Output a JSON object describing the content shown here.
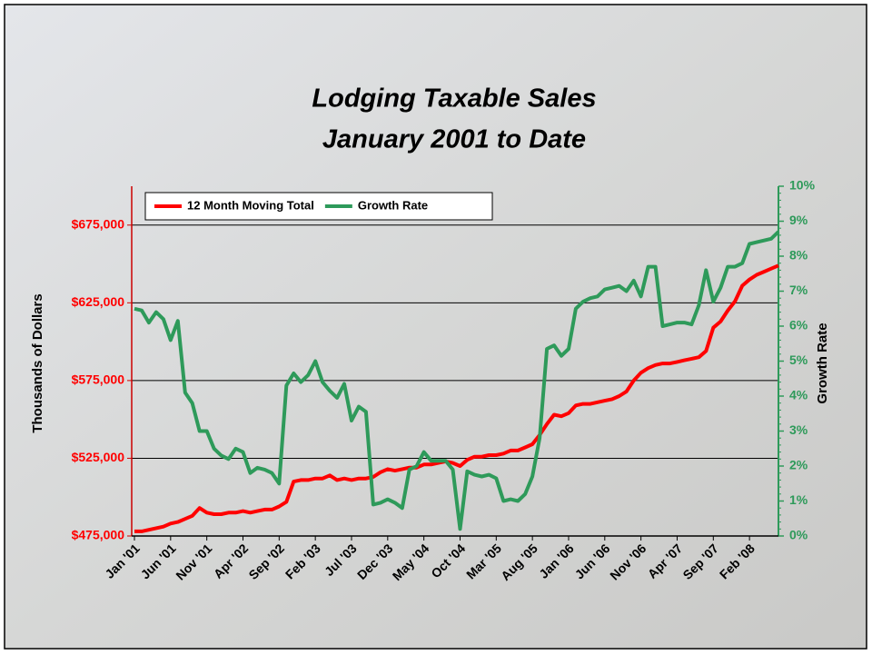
{
  "chart_data": {
    "type": "line",
    "title": "Lodging Taxable Sales",
    "subtitle": "January 2001 to Date",
    "ylabel": "Thousands of Dollars",
    "y2label": "Growth Rate",
    "categories": [
      "Jan '01",
      null,
      null,
      null,
      null,
      "Jun '01",
      null,
      null,
      null,
      null,
      "Nov '01",
      null,
      null,
      null,
      null,
      "Apr '02",
      null,
      null,
      null,
      null,
      "Sep '02",
      null,
      null,
      null,
      null,
      "Feb '03",
      null,
      null,
      null,
      null,
      "Jul '03",
      null,
      null,
      null,
      null,
      "Dec '03",
      null,
      null,
      null,
      null,
      "May '04",
      null,
      null,
      null,
      null,
      "Oct '04",
      null,
      null,
      null,
      null,
      "Mar '05",
      null,
      null,
      null,
      null,
      "Aug '05",
      null,
      null,
      null,
      null,
      "Jan '06",
      null,
      null,
      null,
      null,
      "Jun '06",
      null,
      null,
      null,
      null,
      "Nov '06",
      null,
      null,
      null,
      null,
      "Apr '07",
      null,
      null,
      null,
      null,
      "Sep '07",
      null,
      null,
      null,
      null,
      "Feb '08",
      null,
      null,
      null,
      null
    ],
    "series": [
      {
        "name": "12 Month Moving Total",
        "color": "#ff0000",
        "axis": "y",
        "values": [
          478000,
          478000,
          479000,
          480000,
          481000,
          483000,
          484000,
          486000,
          488000,
          493000,
          490000,
          489000,
          489000,
          490000,
          490000,
          491000,
          490000,
          491000,
          492000,
          492000,
          494000,
          497000,
          510000,
          511000,
          511000,
          512000,
          512000,
          514000,
          511000,
          512000,
          511000,
          512000,
          512000,
          513000,
          516000,
          518000,
          517000,
          518000,
          519000,
          519000,
          521000,
          521000,
          522000,
          523000,
          522000,
          520000,
          524000,
          526000,
          526000,
          527000,
          527000,
          528000,
          530000,
          530000,
          532000,
          534000,
          540000,
          547000,
          553000,
          552000,
          554000,
          559000,
          560000,
          560000,
          561000,
          562000,
          563000,
          565000,
          568000,
          575000,
          580000,
          583000,
          585000,
          586000,
          586000,
          587000,
          588000,
          589000,
          590000,
          594000,
          609000,
          613000,
          620000,
          626000,
          636000,
          640000,
          643000,
          645000,
          647000,
          649000
        ]
      },
      {
        "name": "Growth Rate",
        "color": "#2e9a5a",
        "axis": "y2",
        "values": [
          6.5,
          6.45,
          6.1,
          6.4,
          6.2,
          5.6,
          6.15,
          4.1,
          3.8,
          3.0,
          3.0,
          2.5,
          2.3,
          2.2,
          2.5,
          2.4,
          1.8,
          1.95,
          1.9,
          1.8,
          1.5,
          4.3,
          4.65,
          4.4,
          4.6,
          5.0,
          4.4,
          4.15,
          3.95,
          4.35,
          3.3,
          3.7,
          3.55,
          0.9,
          0.95,
          1.05,
          0.95,
          0.8,
          1.9,
          2.0,
          2.4,
          2.15,
          2.15,
          2.15,
          1.9,
          0.2,
          1.85,
          1.75,
          1.7,
          1.75,
          1.65,
          1.0,
          1.05,
          1.0,
          1.2,
          1.7,
          2.8,
          5.35,
          5.45,
          5.15,
          5.35,
          6.5,
          6.7,
          6.8,
          6.85,
          7.05,
          7.1,
          7.15,
          7.0,
          7.3,
          6.85,
          7.7,
          7.7,
          6.0,
          6.05,
          6.1,
          6.1,
          6.05,
          6.6,
          7.6,
          6.7,
          7.1,
          7.7,
          7.7,
          7.8,
          8.35,
          8.4,
          8.45,
          8.5,
          8.7
        ]
      }
    ],
    "ylim": [
      475000,
      700000
    ],
    "yticks": [
      {
        "value": 475000,
        "label": "$475,000"
      },
      {
        "value": 525000,
        "label": "$525,000"
      },
      {
        "value": 575000,
        "label": "$575,000"
      },
      {
        "value": 625000,
        "label": "$625,000"
      },
      {
        "value": 675000,
        "label": "$675,000"
      }
    ],
    "y2lim": [
      0,
      10
    ],
    "y2ticks": [
      {
        "value": 0,
        "label": "0%"
      },
      {
        "value": 1,
        "label": "1%"
      },
      {
        "value": 2,
        "label": "2%"
      },
      {
        "value": 3,
        "label": "3%"
      },
      {
        "value": 4,
        "label": "4%"
      },
      {
        "value": 5,
        "label": "5%"
      },
      {
        "value": 6,
        "label": "6%"
      },
      {
        "value": 7,
        "label": "7%"
      },
      {
        "value": 8,
        "label": "8%"
      },
      {
        "value": 9,
        "label": "9%"
      },
      {
        "value": 10,
        "label": "10%"
      }
    ],
    "grid": true
  }
}
